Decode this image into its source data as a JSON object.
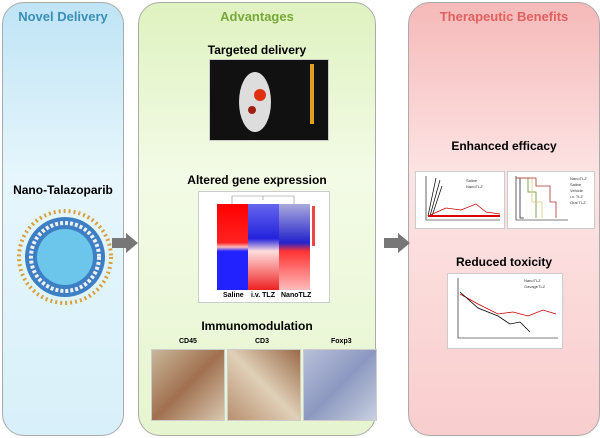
{
  "panels": {
    "left": {
      "title": "Novel Delivery",
      "item": "Nano-Talazoparib",
      "title_color": "#3a8fb7"
    },
    "middle": {
      "title": "Advantages",
      "title_color": "#7aa83a",
      "sections": [
        "Targeted delivery",
        "Altered gene expression",
        "Immunomodulation"
      ],
      "heatmap_labels": [
        "Saline",
        "i.v. TLZ",
        "NanoTLZ"
      ],
      "ihc_labels": [
        "CD45",
        "CD3",
        "Foxp3"
      ]
    },
    "right": {
      "title": "Therapeutic Benefits",
      "title_color": "#e06060",
      "sections": [
        "Enhanced efficacy",
        "Reduced toxicity"
      ],
      "efficacy_legend_1": [
        "Saline",
        "NanoTLZ"
      ],
      "efficacy_legend_2": [
        "NanoTLZ",
        "Saline",
        "Vehicle",
        "i.v. TLZ",
        "Oral TLZ"
      ],
      "toxicity_legend": [
        "NanoTLZ",
        "GavageTLZ"
      ]
    }
  }
}
